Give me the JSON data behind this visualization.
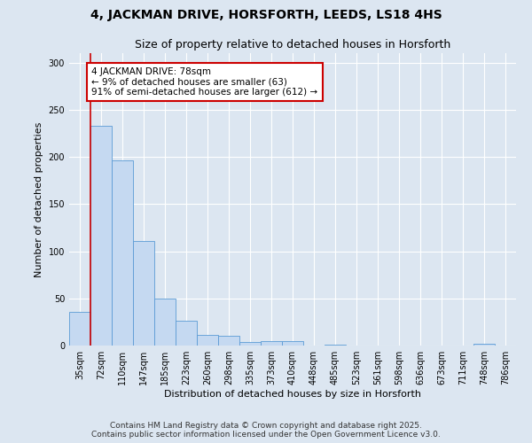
{
  "title_line1": "4, JACKMAN DRIVE, HORSFORTH, LEEDS, LS18 4HS",
  "title_line2": "Size of property relative to detached houses in Horsforth",
  "xlabel": "Distribution of detached houses by size in Horsforth",
  "ylabel": "Number of detached properties",
  "categories": [
    "35sqm",
    "72sqm",
    "110sqm",
    "147sqm",
    "185sqm",
    "223sqm",
    "260sqm",
    "298sqm",
    "335sqm",
    "373sqm",
    "410sqm",
    "448sqm",
    "485sqm",
    "523sqm",
    "561sqm",
    "598sqm",
    "636sqm",
    "673sqm",
    "711sqm",
    "748sqm",
    "786sqm"
  ],
  "values": [
    36,
    233,
    196,
    111,
    50,
    26,
    11,
    10,
    4,
    5,
    5,
    0,
    1,
    0,
    0,
    0,
    0,
    0,
    0,
    2,
    0
  ],
  "bar_color": "#c5d9f1",
  "bar_edge_color": "#5b9bd5",
  "vline_color": "#cc0000",
  "annotation_text": "4 JACKMAN DRIVE: 78sqm\n← 9% of detached houses are smaller (63)\n91% of semi-detached houses are larger (612) →",
  "annotation_box_color": "#ffffff",
  "annotation_box_edge_color": "#cc0000",
  "ylim": [
    0,
    310
  ],
  "yticks": [
    0,
    50,
    100,
    150,
    200,
    250,
    300
  ],
  "footer_text": "Contains HM Land Registry data © Crown copyright and database right 2025.\nContains public sector information licensed under the Open Government Licence v3.0.",
  "bg_color": "#dce6f1",
  "plot_bg_color": "#dce6f1",
  "grid_color": "#ffffff",
  "title_fontsize": 10,
  "subtitle_fontsize": 9,
  "axis_label_fontsize": 8,
  "tick_fontsize": 7,
  "footer_fontsize": 6.5,
  "annotation_fontsize": 7.5
}
